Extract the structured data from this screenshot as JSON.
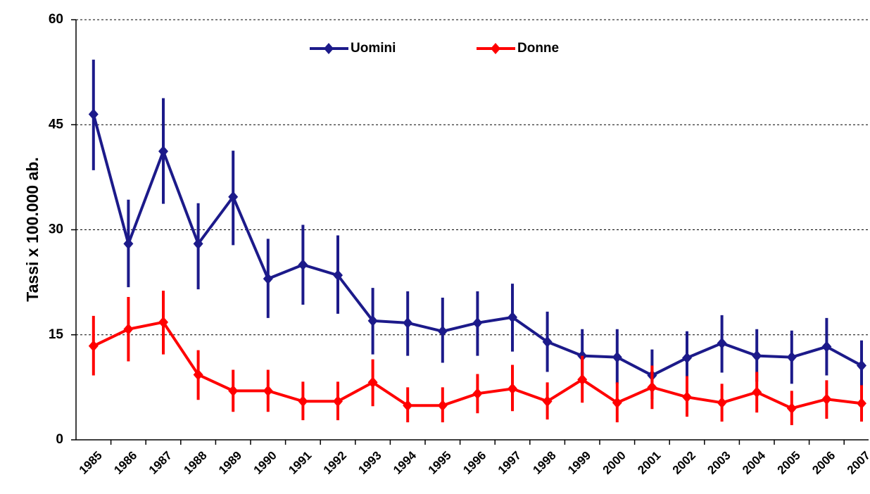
{
  "chart_data": {
    "type": "line",
    "y_label": "Tassi x 100.000 ab.",
    "categories": [
      "1985",
      "1986",
      "1987",
      "1988",
      "1989",
      "1990",
      "1991",
      "1992",
      "1993",
      "1994",
      "1995",
      "1996",
      "1997",
      "1998",
      "1999",
      "2000",
      "2001",
      "2002",
      "2003",
      "2004",
      "2005",
      "2006",
      "2007"
    ],
    "series": [
      {
        "name": "Uomini",
        "color": "#1c1a8a",
        "values": [
          46.5,
          28,
          41.2,
          28,
          34.7,
          23,
          25,
          23.5,
          17,
          16.7,
          15.5,
          16.7,
          17.5,
          14,
          12,
          11.8,
          9.2,
          11.7,
          13.8,
          12,
          11.8,
          13.3,
          10.6
        ],
        "low": [
          38.5,
          21.8,
          33.7,
          21.5,
          27.8,
          17.4,
          19.3,
          18,
          12.2,
          12,
          11,
          12,
          12.6,
          9.7,
          8.3,
          8,
          5.8,
          8,
          9.6,
          8.3,
          8,
          9.2,
          7.2
        ],
        "high": [
          54.3,
          34.3,
          48.8,
          33.8,
          41.3,
          28.7,
          30.7,
          29.2,
          21.7,
          21.2,
          20.3,
          21.2,
          22.3,
          18.3,
          15.8,
          15.8,
          12.9,
          15.5,
          17.8,
          15.8,
          15.6,
          17.4,
          14.2
        ]
      },
      {
        "name": "Donne",
        "color": "#ff0000",
        "values": [
          13.4,
          15.8,
          16.8,
          9.3,
          7,
          7,
          5.5,
          5.5,
          8.2,
          4.9,
          4.9,
          6.6,
          7.3,
          5.5,
          8.6,
          5.3,
          7.5,
          6.1,
          5.3,
          6.8,
          4.5,
          5.8,
          5.2
        ],
        "low": [
          9.2,
          11.2,
          12.2,
          5.7,
          4,
          4,
          2.8,
          2.8,
          4.8,
          2.5,
          2.5,
          3.8,
          4.1,
          2.9,
          5.3,
          2.5,
          4.4,
          3.3,
          2.6,
          3.9,
          2.1,
          3,
          2.6
        ],
        "high": [
          17.7,
          20.4,
          21.3,
          12.8,
          10,
          10,
          8.3,
          8.3,
          11.5,
          7.5,
          7.5,
          9.4,
          10.7,
          8.2,
          12,
          8.2,
          10.6,
          9.1,
          8,
          9.7,
          7,
          8.5,
          7.8
        ]
      }
    ],
    "ylim": [
      0,
      60
    ],
    "yticks": [
      0,
      15,
      30,
      45,
      60
    ],
    "grid": true,
    "legend": "top"
  }
}
